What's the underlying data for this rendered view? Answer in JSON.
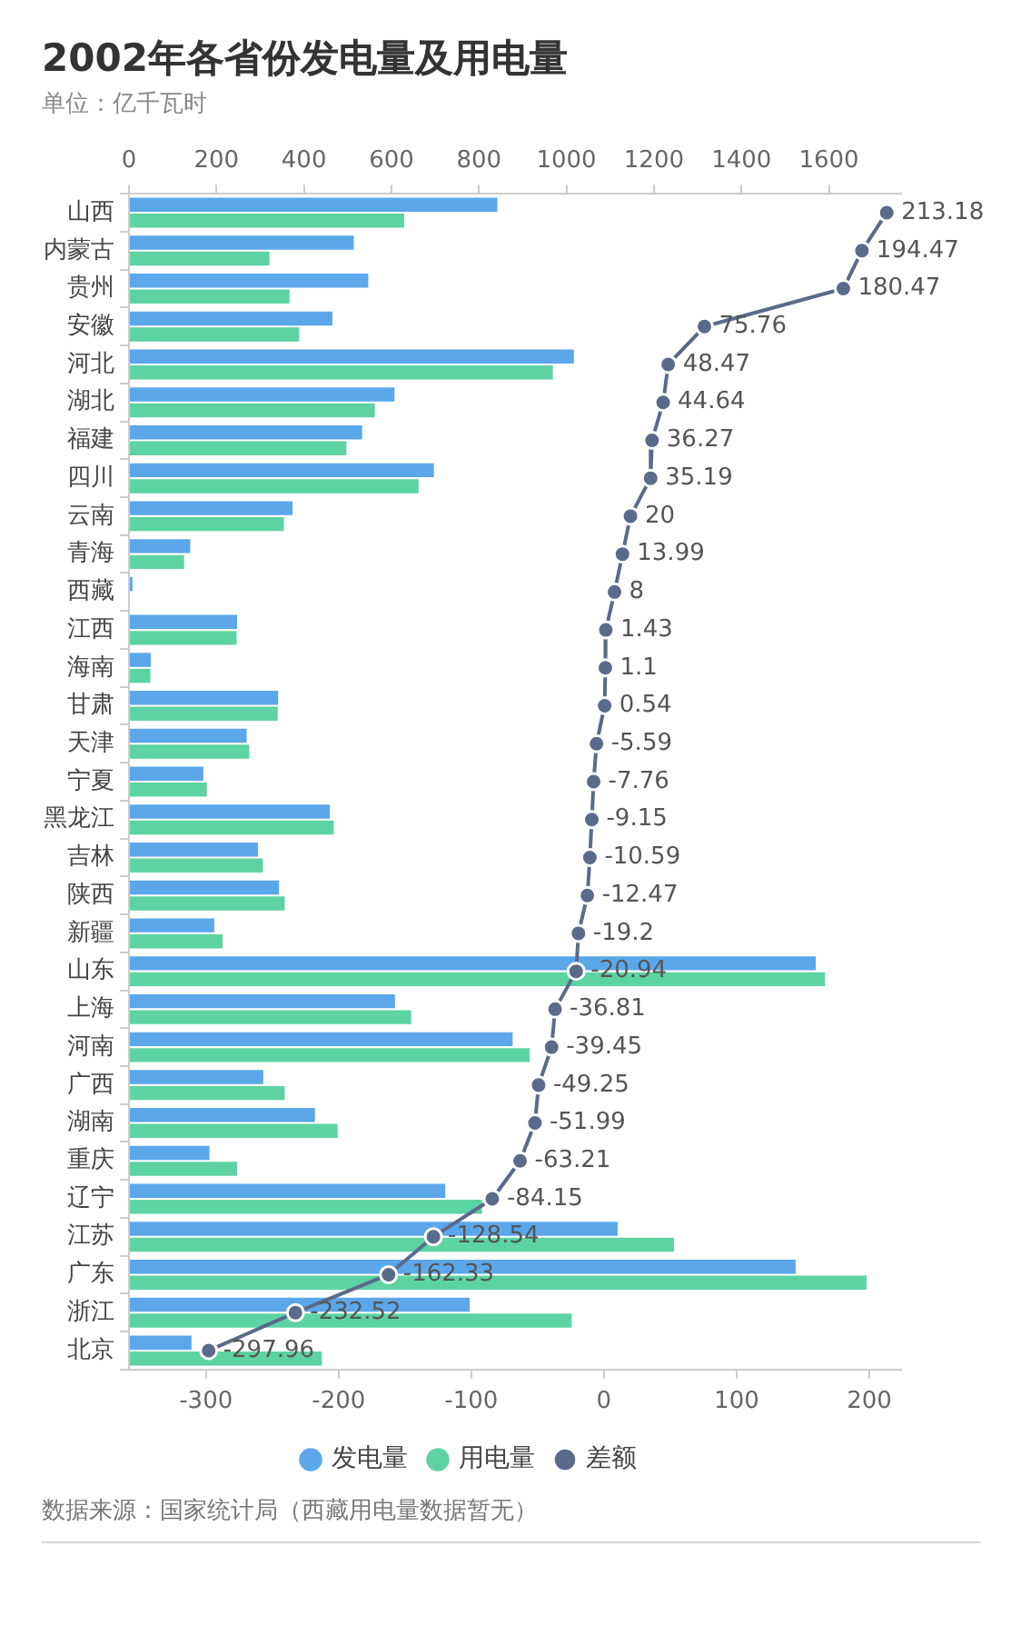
{
  "chart_data": {
    "type": "bar",
    "orientation": "horizontal",
    "title": "2002年各省份发电量及用电量",
    "subtitle": "单位：亿千瓦时",
    "categories": [
      "山西",
      "内蒙古",
      "贵州",
      "安徽",
      "河北",
      "湖北",
      "福建",
      "四川",
      "云南",
      "青海",
      "西藏",
      "江西",
      "海南",
      "甘肃",
      "天津",
      "宁夏",
      "黑龙江",
      "吉林",
      "陕西",
      "新疆",
      "山东",
      "上海",
      "河南",
      "广西",
      "湖南",
      "重庆",
      "辽宁",
      "江苏",
      "广东",
      "浙江",
      "北京"
    ],
    "series": [
      {
        "name": "发电量",
        "color": "#5ba7ea",
        "axis": "x2",
        "values": [
          842,
          514,
          547,
          465,
          1017,
          607,
          533,
          697,
          374,
          140,
          8,
          247,
          50,
          341,
          269,
          170,
          459,
          295,
          343,
          195,
          1570,
          608,
          877,
          307,
          425,
          184,
          723,
          1117,
          1524,
          779,
          143
        ]
      },
      {
        "name": "用电量",
        "color": "#5dd3a3",
        "axis": "x2",
        "values": [
          629,
          321,
          367,
          389,
          969,
          562,
          497,
          662,
          354,
          126,
          null,
          246,
          49,
          340,
          275,
          178,
          468,
          306,
          356,
          214,
          1591,
          645,
          916,
          356,
          477,
          247,
          807,
          1246,
          1686,
          1012,
          441
        ]
      },
      {
        "name": "差额",
        "type": "line",
        "color": "#5a6a8a",
        "values": [
          213.18,
          194.47,
          180.47,
          75.76,
          48.47,
          44.64,
          36.27,
          35.19,
          20,
          13.99,
          8,
          1.43,
          1.1,
          0.54,
          -5.59,
          -7.76,
          -9.15,
          -10.59,
          -12.47,
          -19.2,
          -20.94,
          -36.81,
          -39.45,
          -49.25,
          -51.99,
          -63.21,
          -84.15,
          -128.54,
          -162.33,
          -232.52,
          -297.96
        ],
        "value_labels": [
          "213.18",
          "194.47",
          "180.47",
          "75.76",
          "48.47",
          "44.64",
          "36.27",
          "35.19",
          "20",
          "13.99",
          "8",
          "1.43",
          "1.1",
          "0.54",
          "-5.59",
          "-7.76",
          "-9.15",
          "-10.59",
          "-12.47",
          "-19.2",
          "-20.94",
          "-36.81",
          "-39.45",
          "-49.25",
          "-51.99",
          "-63.21",
          "-84.15",
          "-128.54",
          "-162.33",
          "-232.52",
          "-297.96"
        ]
      }
    ],
    "x2lim": [
      0,
      1765
    ],
    "x2ticks": [
      0,
      200,
      400,
      600,
      800,
      1000,
      1200,
      1400,
      1600
    ],
    "xlim": [
      -358,
      224
    ],
    "xticks": [
      -300,
      -200,
      -100,
      0,
      100,
      200
    ],
    "marker": "circle",
    "legend": "bottom",
    "annotations": [
      "数据来源：国家统计局（西藏用电量数据暂无）"
    ]
  }
}
